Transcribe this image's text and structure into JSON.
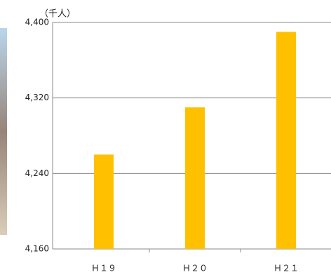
{
  "chart_data": {
    "type": "bar",
    "unit_label": "（千人）",
    "categories": [
      "Ｈ１９",
      "Ｈ２０",
      "Ｈ２１"
    ],
    "values": [
      4260,
      4310,
      4390
    ],
    "color": "#ffc000",
    "ylim": [
      4160,
      4400
    ],
    "yticks": [
      {
        "value": 4160,
        "label": "4,160"
      },
      {
        "value": 4240,
        "label": "4,240"
      },
      {
        "value": 4320,
        "label": "4,320"
      },
      {
        "value": 4400,
        "label": "4,400"
      }
    ],
    "grid": true
  }
}
